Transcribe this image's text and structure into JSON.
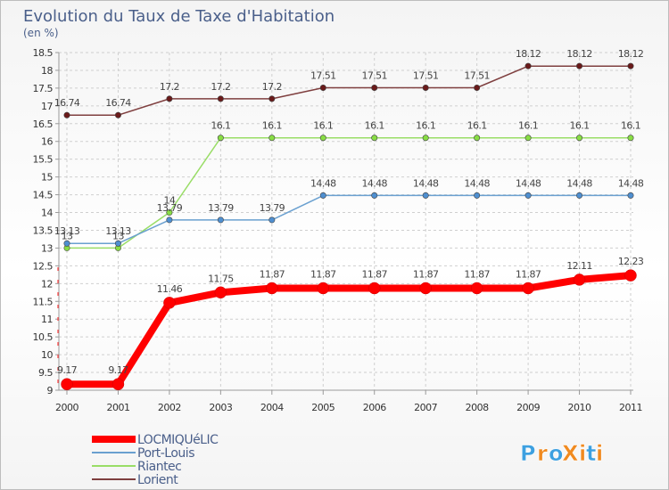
{
  "chart_data": {
    "type": "line",
    "title": "Evolution du Taux de Taxe d'Habitation",
    "subtitle": "(en %)",
    "xlabel": "",
    "ylabel": "",
    "x": [
      "2000",
      "2001",
      "2002",
      "2003",
      "2004",
      "2005",
      "2006",
      "2007",
      "2008",
      "2009",
      "2010",
      "2011"
    ],
    "ylim": [
      9,
      18.5
    ],
    "yticks": [
      "9",
      "9.5",
      "10",
      "10.5",
      "11",
      "11.5",
      "12",
      "12.5",
      "13",
      "13.5",
      "14",
      "14.5",
      "15",
      "15.5",
      "16",
      "16.5",
      "17",
      "17.5",
      "18",
      "18.5"
    ],
    "grid": true,
    "legend_position": "bottom-left",
    "series": [
      {
        "name": "LOCMIQUéLIC",
        "color": "#ff0000",
        "marker_color": "#ff0000",
        "thick": true,
        "values": [
          9.17,
          9.17,
          11.46,
          11.75,
          11.87,
          11.87,
          11.87,
          11.87,
          11.87,
          11.87,
          12.11,
          12.23
        ],
        "labels": [
          "9.17",
          "9.17",
          "11.46",
          "11.75",
          "11.87",
          "11.87",
          "11.87",
          "11.87",
          "11.87",
          "11.87",
          "12.11",
          "12.23"
        ]
      },
      {
        "name": "Port-Louis",
        "color": "#6aa0d0",
        "marker_color": "#4f8fd0",
        "values": [
          13.13,
          13.13,
          13.79,
          13.79,
          13.79,
          14.48,
          14.48,
          14.48,
          14.48,
          14.48,
          14.48,
          14.48
        ],
        "labels": [
          "13.13",
          "13.13",
          "13.79",
          "13.79",
          "13.79",
          "14.48",
          "14.48",
          "14.48",
          "14.48",
          "14.48",
          "14.48",
          "14.48"
        ]
      },
      {
        "name": "Riantec",
        "color": "#99dd66",
        "marker_color": "#88dd44",
        "values": [
          13,
          13,
          14,
          16.1,
          16.1,
          16.1,
          16.1,
          16.1,
          16.1,
          16.1,
          16.1,
          16.1
        ],
        "labels": [
          "13",
          "13",
          "14",
          "16.1",
          "16.1",
          "16.1",
          "16.1",
          "16.1",
          "16.1",
          "16.1",
          "16.1",
          "16.1"
        ]
      },
      {
        "name": "Lorient",
        "color": "#7f3f3f",
        "marker_color": "#6a1a1a",
        "values": [
          16.74,
          16.74,
          17.2,
          17.2,
          17.2,
          17.51,
          17.51,
          17.51,
          17.51,
          18.12,
          18.12,
          18.12
        ],
        "labels": [
          "16.74",
          "16.74",
          "17.2",
          "17.2",
          "17.2",
          "17.51",
          "17.51",
          "17.51",
          "17.51",
          "18.12",
          "18.12",
          "18.12"
        ]
      }
    ]
  },
  "brand": {
    "text": "ProXiti",
    "letters": [
      "P",
      "r",
      "o",
      "X",
      "i",
      "t",
      "i"
    ],
    "colors": [
      "#3da0e0",
      "#f08a20",
      "#3da0e0",
      "#f08a20",
      "#f08a20",
      "#3da0e0",
      "#f08a20"
    ]
  }
}
